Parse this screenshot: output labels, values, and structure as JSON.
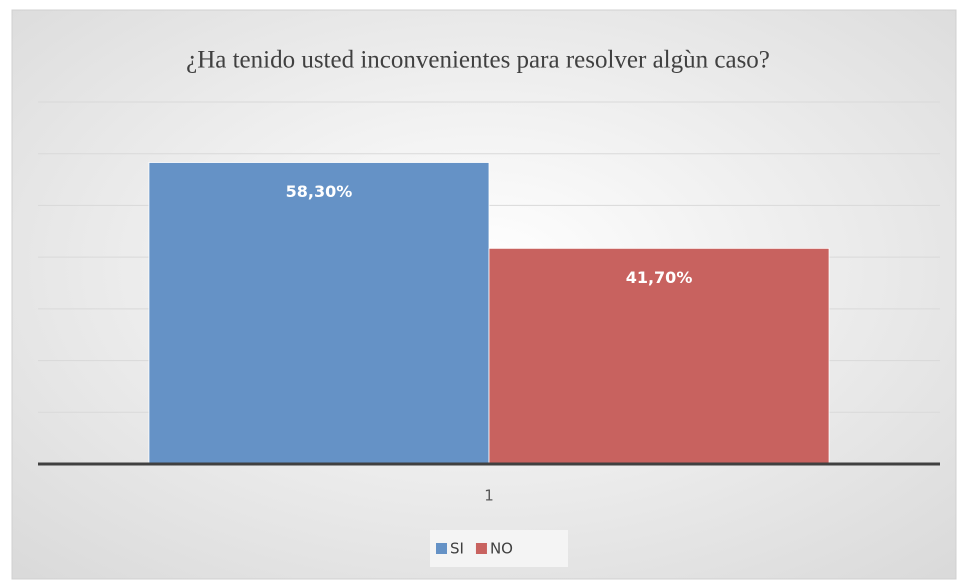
{
  "chart_data": {
    "type": "bar",
    "title": "¿Ha tenido usted inconvenientes para resolver algùn caso?",
    "categories": [
      "1"
    ],
    "series": [
      {
        "name": "SI",
        "color": "#6592c6",
        "values": [
          58.3
        ],
        "value_labels": [
          "58,30%"
        ]
      },
      {
        "name": "NO",
        "color": "#c8625f",
        "values": [
          41.7
        ],
        "value_labels": [
          "41,70%"
        ]
      }
    ],
    "ylim": [
      0,
      70
    ],
    "yticks": [
      0,
      10,
      20,
      30,
      40,
      50,
      60,
      70
    ],
    "grid": true,
    "legend": "bottom"
  }
}
